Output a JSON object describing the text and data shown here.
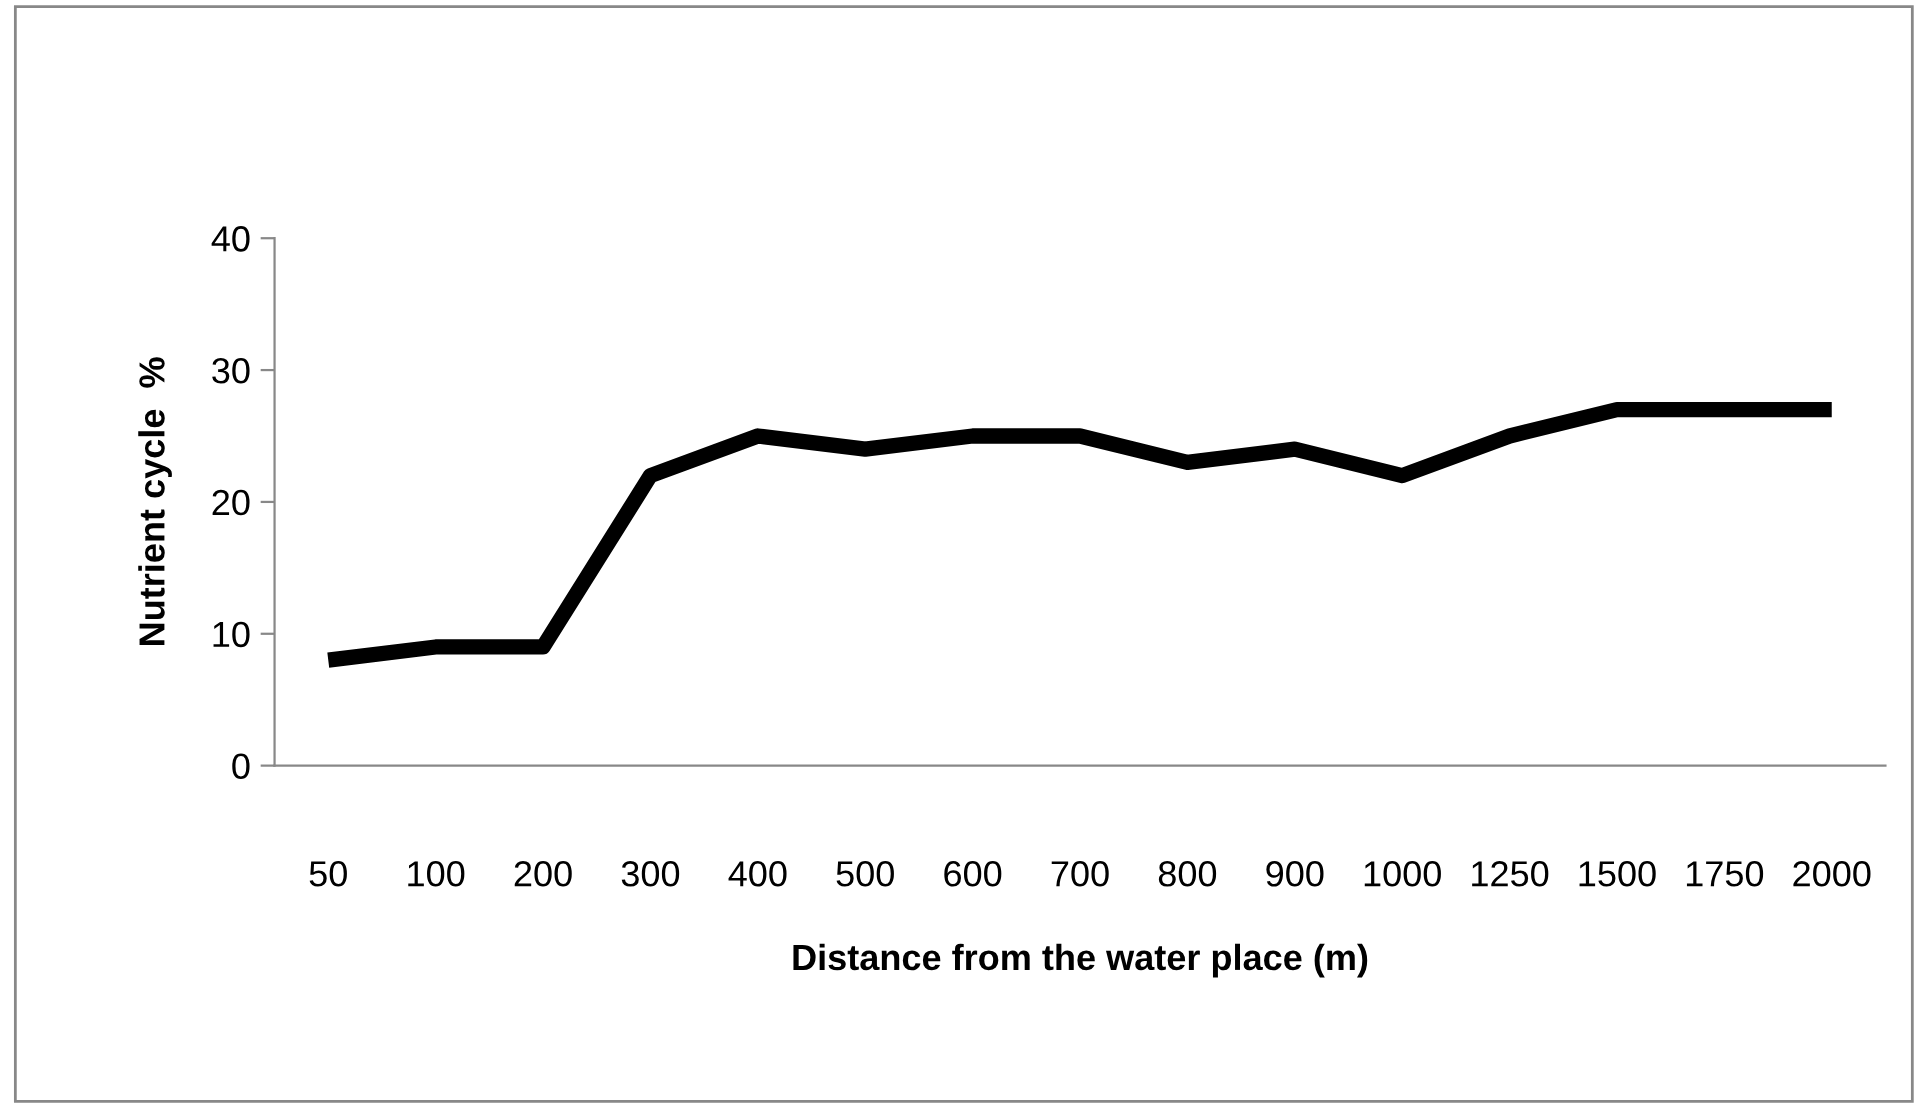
{
  "chart_data": {
    "type": "line",
    "xlabel": "Distance from the water place (m)",
    "ylabel": "Nutrient cycle  %",
    "categories": [
      "50",
      "100",
      "200",
      "300",
      "400",
      "500",
      "600",
      "700",
      "800",
      "900",
      "1000",
      "1250",
      "1500",
      "1750",
      "2000"
    ],
    "series": [
      {
        "color": "#000000",
        "values": [
          8,
          9,
          9,
          22,
          25,
          24,
          25,
          25,
          23,
          24,
          22,
          25,
          27,
          27,
          27
        ]
      }
    ],
    "ylim": [
      0,
      40
    ],
    "yticks": [
      0,
      10,
      20,
      30,
      40
    ],
    "grid": false,
    "legend": false,
    "marker": "none",
    "line_style": "solid"
  }
}
